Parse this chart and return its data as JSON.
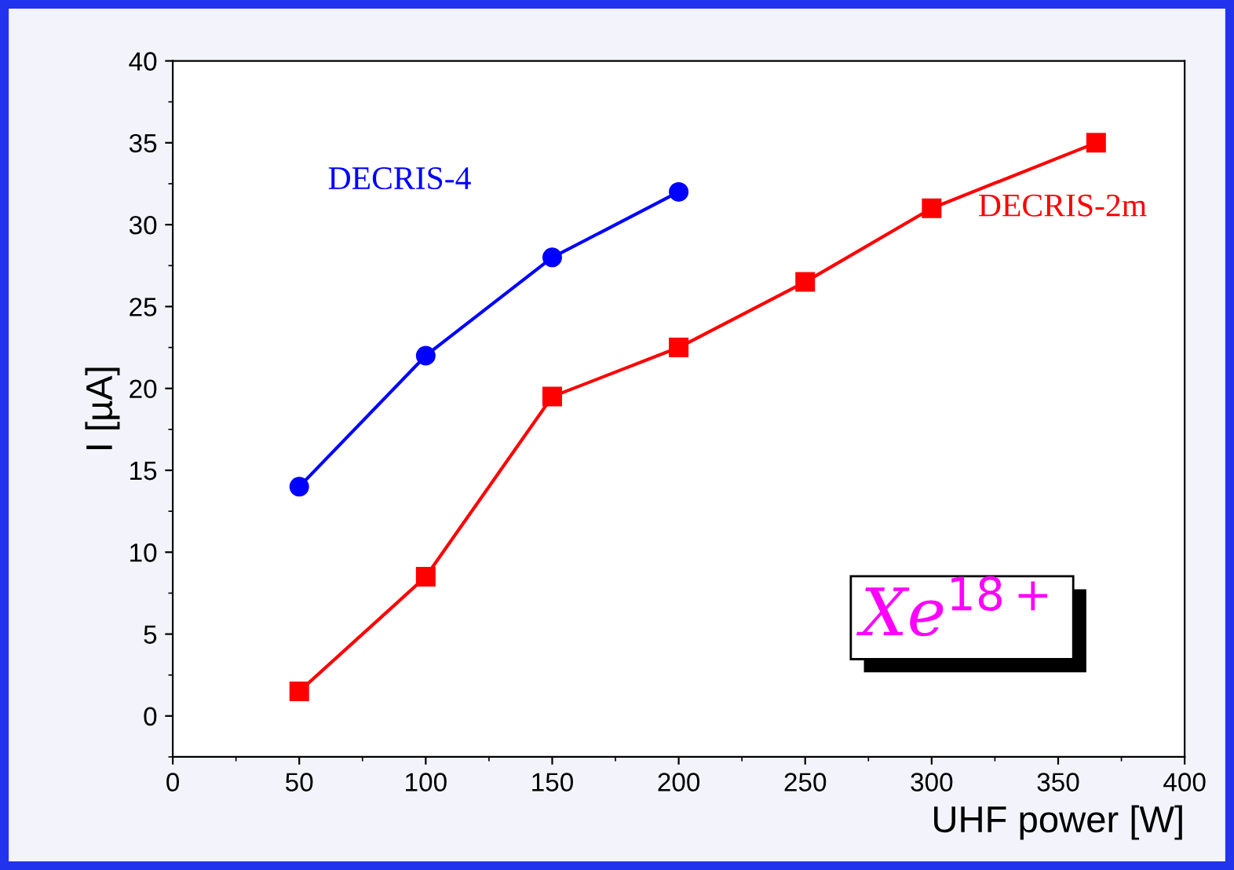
{
  "chart_data": {
    "type": "line",
    "xlabel": "UHF power [W]",
    "ylabel": "I [µA]",
    "xlim": [
      0,
      400
    ],
    "xticks": [
      0,
      50,
      100,
      150,
      200,
      250,
      300,
      350,
      400
    ],
    "ylim": [
      -2.5,
      40
    ],
    "yticks": [
      0,
      5,
      10,
      15,
      20,
      25,
      30,
      35,
      40
    ],
    "grid": false,
    "legend": false,
    "line_style": "solid",
    "annotations": [
      "Xe$^{18+}$"
    ],
    "series": [
      {
        "name": "DECRIS-4",
        "color": "#0000ff",
        "marker": "circle",
        "x": [
          50,
          100,
          150,
          200
        ],
        "values": [
          14,
          22,
          28,
          32
        ]
      },
      {
        "name": "DECRIS-2m",
        "color": "#ff0000",
        "marker": "square",
        "x": [
          50,
          100,
          150,
          200,
          250,
          300,
          365
        ],
        "values": [
          1.5,
          8.5,
          19.5,
          22.5,
          26.5,
          31,
          35
        ]
      }
    ]
  }
}
